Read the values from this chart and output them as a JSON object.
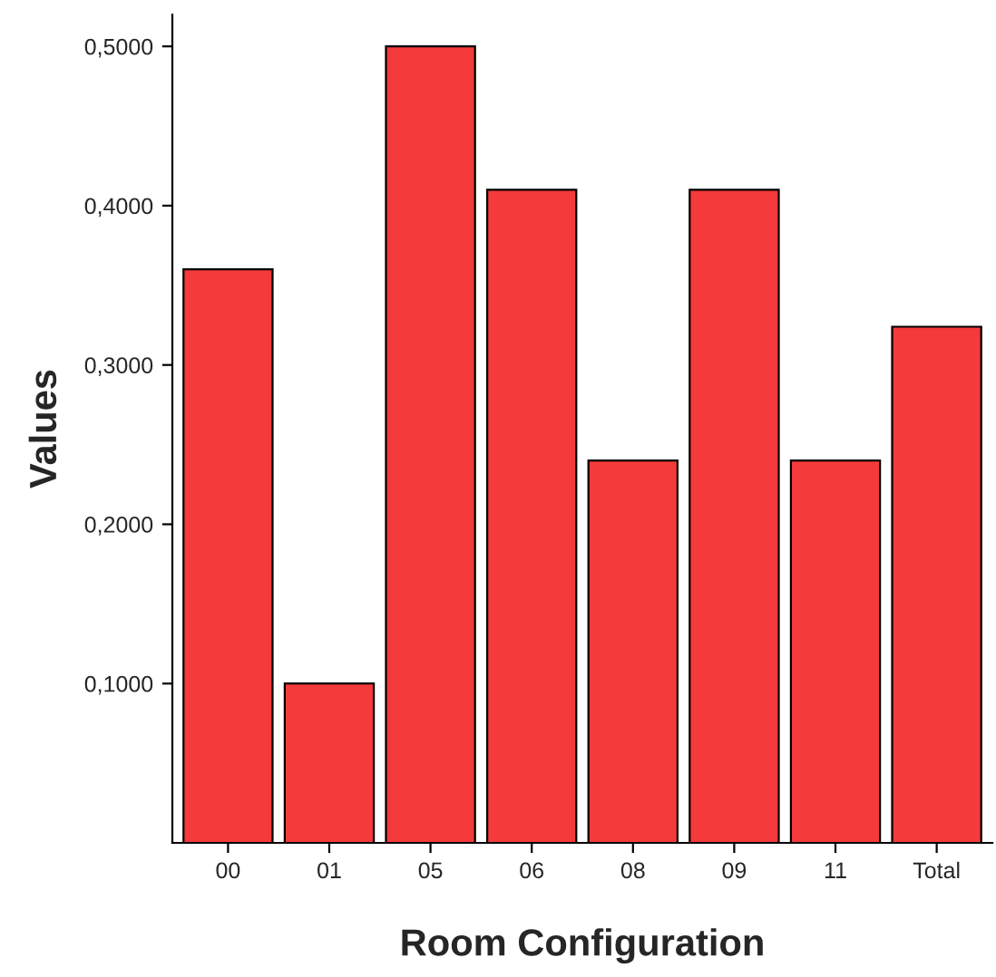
{
  "chart_data": {
    "type": "bar",
    "xlabel": "Room Configuration",
    "ylabel": "Values",
    "categories": [
      "00",
      "01",
      "05",
      "06",
      "08",
      "09",
      "11",
      "Total"
    ],
    "values": [
      0.36,
      0.1,
      0.5,
      0.41,
      0.24,
      0.41,
      0.24,
      0.324
    ],
    "color": "#f43a3a",
    "ylim": [
      0,
      0.52
    ],
    "yticks": [
      {
        "value": 0.1,
        "label": "0,1000"
      },
      {
        "value": 0.2,
        "label": "0,2000"
      },
      {
        "value": 0.3,
        "label": "0,3000"
      },
      {
        "value": 0.4,
        "label": "0,4000"
      },
      {
        "value": 0.5,
        "label": "0,5000"
      }
    ],
    "grid": false,
    "legend": false
  }
}
